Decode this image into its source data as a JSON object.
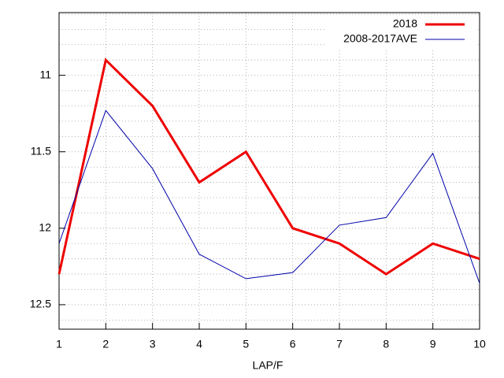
{
  "chart_data": {
    "type": "line",
    "xlabel": "LAP/F",
    "x": [
      1,
      2,
      3,
      4,
      5,
      6,
      7,
      8,
      9,
      10
    ],
    "xlim": [
      1,
      10
    ],
    "xticks": [
      1,
      2,
      3,
      4,
      5,
      6,
      7,
      8,
      9,
      10
    ],
    "ylim": [
      12.66,
      10.59
    ],
    "yticks": [
      11,
      11.5,
      12,
      12.5
    ],
    "yminorticks": [
      10.6,
      10.7,
      10.8,
      10.9,
      11.1,
      11.2,
      11.3,
      11.4,
      11.6,
      11.7,
      11.8,
      11.9,
      12.1,
      12.2,
      12.3,
      12.4,
      12.6
    ],
    "grid": true,
    "legend": "top-right",
    "series": [
      {
        "name": "2018",
        "color": "#ee0000",
        "width": 3,
        "values": [
          12.3,
          10.9,
          11.2,
          11.7,
          11.5,
          12.0,
          12.1,
          12.3,
          12.1,
          12.2
        ]
      },
      {
        "name": "2008-2017AVE",
        "color": "#0000aa",
        "width": 1,
        "values": [
          12.1,
          11.23,
          11.61,
          12.17,
          12.33,
          12.29,
          11.98,
          11.93,
          11.51,
          12.36
        ]
      }
    ]
  }
}
